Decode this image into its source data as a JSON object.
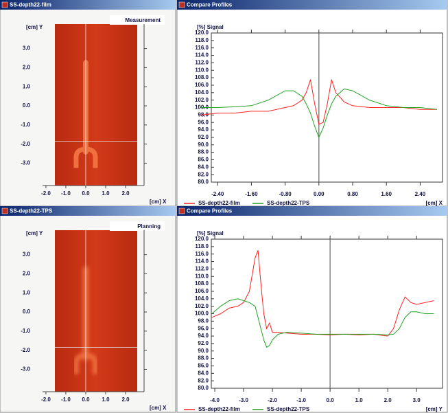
{
  "image_panels": [
    {
      "title": "SS-depth22-film",
      "label": "Measurement",
      "y_axis_label": "[cm] Y",
      "x_axis_label": "[cm] X",
      "xlim": [
        -2.17,
        2.93
      ],
      "ylim": [
        -4.17,
        4.28
      ],
      "xticks": [
        {
          "value": -2,
          "label": "-2.0"
        },
        {
          "value": -1,
          "label": "-1.0"
        },
        {
          "value": 0,
          "label": "0.0"
        },
        {
          "value": 1,
          "label": "1.0"
        },
        {
          "value": 2,
          "label": "2.0"
        }
      ],
      "yticks": [
        {
          "value": 3,
          "label": "3.0"
        },
        {
          "value": 2,
          "label": "2.0"
        },
        {
          "value": 1,
          "label": "1.0"
        },
        {
          "value": 0,
          "label": "0.0"
        },
        {
          "value": -1,
          "label": "-1.0"
        },
        {
          "value": -2,
          "label": "-2.0"
        },
        {
          "value": -3,
          "label": "-3.0"
        }
      ],
      "cursor": {
        "x": 0,
        "y": -1.85
      }
    },
    {
      "title": "SS-depth22-TPS",
      "label": "Planning",
      "y_axis_label": "[cm] Y",
      "x_axis_label": "[cm] X",
      "xlim": [
        -2.17,
        2.93
      ],
      "ylim": [
        -4.17,
        4.28
      ],
      "xticks": [
        {
          "value": -2,
          "label": "-2.0"
        },
        {
          "value": -1,
          "label": "-1.0"
        },
        {
          "value": 0,
          "label": "0.0"
        },
        {
          "value": 1,
          "label": "1.0"
        },
        {
          "value": 2,
          "label": "2.0"
        }
      ],
      "yticks": [
        {
          "value": 3,
          "label": "3.0"
        },
        {
          "value": 2,
          "label": "2.0"
        },
        {
          "value": 1,
          "label": "1.0"
        },
        {
          "value": 0,
          "label": "0.0"
        },
        {
          "value": -1,
          "label": "-1.0"
        },
        {
          "value": -2,
          "label": "-2.0"
        },
        {
          "value": -3,
          "label": "-3.0"
        }
      ],
      "cursor": {
        "x": 0,
        "y": -1.85
      }
    }
  ],
  "chart_data": [
    {
      "type": "line",
      "title": "Compare Profiles",
      "y_axis_label": "[%] Signal",
      "x_axis_label": "[cm] X",
      "x": [
        -2.8,
        -2.4,
        -2.0,
        -1.6,
        -1.2,
        -0.8,
        -0.6,
        -0.4,
        -0.3,
        -0.2,
        -0.1,
        0,
        0.1,
        0.2,
        0.3,
        0.4,
        0.6,
        0.8,
        1.2,
        1.6,
        2.0,
        2.4,
        2.8
      ],
      "series": [
        {
          "name": "SS-depth22-film",
          "color": "#ff2020",
          "values": [
            98,
            98.5,
            98.5,
            99,
            99,
            100,
            100.5,
            102,
            104,
            107.5,
            101,
            95.5,
            96,
            101,
            107.5,
            104,
            101.5,
            100.5,
            100,
            100,
            100,
            99.5,
            99.5
          ]
        },
        {
          "name": "SS-depth22-TPS",
          "color": "#20a020",
          "values": [
            100,
            100,
            100.2,
            100.5,
            102,
            104.5,
            104.5,
            103,
            101,
            98.5,
            95,
            92,
            94.5,
            98,
            101,
            103,
            105,
            104.5,
            102,
            100.5,
            100,
            100,
            99.5
          ]
        }
      ],
      "xlim": [
        -2.55,
        2.93
      ],
      "ylim": [
        80,
        120
      ],
      "xticks": [
        {
          "value": -2.4,
          "label": "-2.40"
        },
        {
          "value": -1.6,
          "label": "-1.60"
        },
        {
          "value": -0.8,
          "label": "-0.80"
        },
        {
          "value": 0,
          "label": "0.00"
        },
        {
          "value": 0.8,
          "label": "0.80"
        },
        {
          "value": 1.6,
          "label": "1.60"
        },
        {
          "value": 2.4,
          "label": "2.40"
        }
      ],
      "yticks": [
        {
          "value": 120,
          "label": "120.0"
        },
        {
          "value": 118,
          "label": "118.0"
        },
        {
          "value": 116,
          "label": "116.0"
        },
        {
          "value": 114,
          "label": "114.0"
        },
        {
          "value": 112,
          "label": "112.0"
        },
        {
          "value": 110,
          "label": "110.0"
        },
        {
          "value": 108,
          "label": "108.0"
        },
        {
          "value": 106,
          "label": "106.0"
        },
        {
          "value": 104,
          "label": "104.0"
        },
        {
          "value": 102,
          "label": "102.0"
        },
        {
          "value": 100,
          "label": "100.0"
        },
        {
          "value": 98,
          "label": "98.0"
        },
        {
          "value": 96,
          "label": "96.0"
        },
        {
          "value": 94,
          "label": "94.0"
        },
        {
          "value": 92,
          "label": "92.0"
        },
        {
          "value": 90,
          "label": "90.0"
        },
        {
          "value": 88,
          "label": "88.0"
        },
        {
          "value": 86,
          "label": "86.0"
        },
        {
          "value": 84,
          "label": "84.0"
        },
        {
          "value": 82,
          "label": "82.0"
        },
        {
          "value": 80,
          "label": "80.0"
        }
      ],
      "cursor_x": 0
    },
    {
      "type": "line",
      "title": "Compare Profiles",
      "y_axis_label": "[%] Signal",
      "x_axis_label": "[cm] Y",
      "x": [
        -4.1,
        -3.8,
        -3.5,
        -3.2,
        -3.0,
        -2.8,
        -2.6,
        -2.5,
        -2.4,
        -2.3,
        -2.2,
        -2.1,
        -2.0,
        -1.8,
        -1.5,
        -1.0,
        -0.5,
        0,
        0.5,
        1.0,
        1.5,
        2.0,
        2.2,
        2.4,
        2.6,
        2.8,
        3.0,
        3.3,
        3.6
      ],
      "series": [
        {
          "name": "SS-depth22-film",
          "color": "#ff2020",
          "values": [
            99,
            100,
            101.5,
            102,
            103,
            106,
            115,
            117,
            108,
            100,
            96,
            97.5,
            95,
            95,
            94.8,
            94.5,
            94.5,
            94.3,
            94.5,
            94.3,
            94.5,
            94,
            96,
            101,
            104.5,
            103,
            102.5,
            103,
            103.5
          ]
        },
        {
          "name": "SS-depth22-TPS",
          "color": "#20a020",
          "values": [
            100,
            102,
            103.5,
            104,
            103.5,
            103,
            102,
            99,
            96,
            93,
            91,
            91.5,
            93,
            94.5,
            95,
            94.8,
            94.5,
            94.5,
            94.5,
            94.5,
            94.5,
            94.3,
            94.5,
            96,
            99,
            100.5,
            100.5,
            100,
            100
          ]
        }
      ],
      "xlim": [
        -4.12,
        3.9
      ],
      "ylim": [
        80,
        120
      ],
      "xticks": [
        {
          "value": -4,
          "label": "-4.0"
        },
        {
          "value": -3,
          "label": "-3.0"
        },
        {
          "value": -2,
          "label": "-2.0"
        },
        {
          "value": -1,
          "label": "-1.0"
        },
        {
          "value": 0,
          "label": "0.0"
        },
        {
          "value": 1,
          "label": "1.0"
        },
        {
          "value": 2,
          "label": "2.0"
        },
        {
          "value": 3,
          "label": "3.0"
        }
      ],
      "yticks": [
        {
          "value": 120,
          "label": "120.0"
        },
        {
          "value": 118,
          "label": "118.0"
        },
        {
          "value": 116,
          "label": "116.0"
        },
        {
          "value": 114,
          "label": "114.0"
        },
        {
          "value": 112,
          "label": "112.0"
        },
        {
          "value": 110,
          "label": "110.0"
        },
        {
          "value": 108,
          "label": "108.0"
        },
        {
          "value": 106,
          "label": "106.0"
        },
        {
          "value": 104,
          "label": "104.0"
        },
        {
          "value": 102,
          "label": "102.0"
        },
        {
          "value": 100,
          "label": "100.0"
        },
        {
          "value": 98,
          "label": "98.0"
        },
        {
          "value": 96,
          "label": "96.0"
        },
        {
          "value": 94,
          "label": "94.0"
        },
        {
          "value": 92,
          "label": "92.0"
        },
        {
          "value": 90,
          "label": "90.0"
        },
        {
          "value": 88,
          "label": "88.0"
        },
        {
          "value": 86,
          "label": "86.0"
        },
        {
          "value": 84,
          "label": "84.0"
        },
        {
          "value": 82,
          "label": "82.0"
        },
        {
          "value": 80,
          "label": "80.0"
        }
      ],
      "cursor_x": 0
    }
  ]
}
